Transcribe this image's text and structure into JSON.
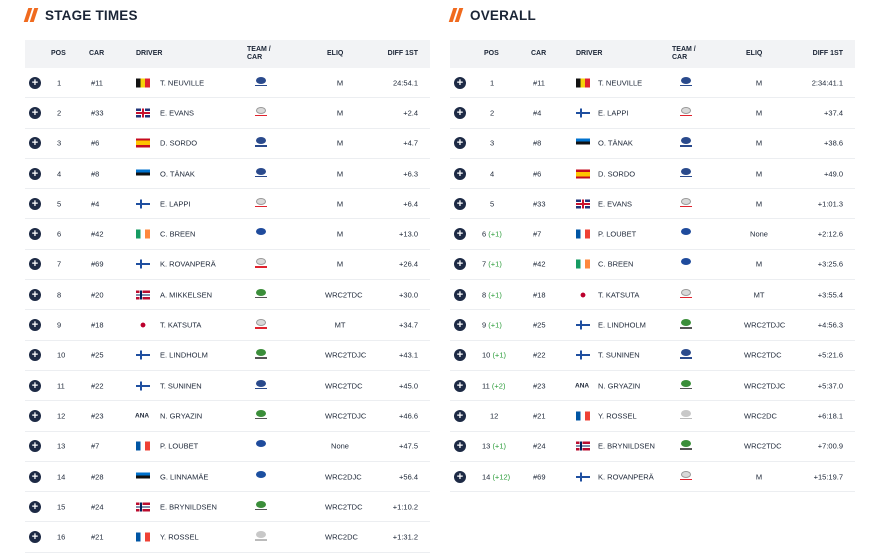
{
  "colors": {
    "accent": "#f06a1e",
    "plus": "#1d2a45",
    "gain": "#2e9e3c"
  },
  "stage": {
    "title": "STAGE TIMES",
    "headers": {
      "pos": "POS",
      "car": "CAR",
      "driver": "DRIVER",
      "team": "TEAM / CAR",
      "eliq": "ELIQ",
      "diff": "DIFF 1ST"
    },
    "rows": [
      {
        "pos": "1",
        "chg": "",
        "car": "#11",
        "flag": "BEL",
        "driver": "T. NEUVILLE",
        "team": "hyundai",
        "eliq": "M",
        "diff": "24:54.1"
      },
      {
        "pos": "2",
        "chg": "",
        "car": "#33",
        "flag": "GBR",
        "driver": "E. EVANS",
        "team": "toyota",
        "eliq": "M",
        "diff": "+2.4"
      },
      {
        "pos": "3",
        "chg": "",
        "car": "#6",
        "flag": "ESP",
        "driver": "D. SORDO",
        "team": "hyundai",
        "eliq": "M",
        "diff": "+4.7"
      },
      {
        "pos": "4",
        "chg": "",
        "car": "#8",
        "flag": "EST",
        "driver": "O. TÄNAK",
        "team": "hyundai",
        "eliq": "M",
        "diff": "+6.3"
      },
      {
        "pos": "5",
        "chg": "",
        "car": "#4",
        "flag": "FIN",
        "driver": "E. LAPPI",
        "team": "toyota",
        "eliq": "M",
        "diff": "+6.4"
      },
      {
        "pos": "6",
        "chg": "",
        "car": "#42",
        "flag": "IRL",
        "driver": "C. BREEN",
        "team": "ford",
        "eliq": "M",
        "diff": "+13.0"
      },
      {
        "pos": "7",
        "chg": "",
        "car": "#69",
        "flag": "FIN",
        "driver": "K. ROVANPERÄ",
        "team": "toyota",
        "eliq": "M",
        "diff": "+26.4"
      },
      {
        "pos": "8",
        "chg": "",
        "car": "#20",
        "flag": "NOR",
        "driver": "A. MIKKELSEN",
        "team": "skoda",
        "eliq": "WRC2TDC",
        "diff": "+30.0"
      },
      {
        "pos": "9",
        "chg": "",
        "car": "#18",
        "flag": "JPN",
        "driver": "T. KATSUTA",
        "team": "toyota",
        "eliq": "MT",
        "diff": "+34.7"
      },
      {
        "pos": "10",
        "chg": "",
        "car": "#25",
        "flag": "FIN",
        "driver": "E. LINDHOLM",
        "team": "skoda",
        "eliq": "WRC2TDJC",
        "diff": "+43.1"
      },
      {
        "pos": "11",
        "chg": "",
        "car": "#22",
        "flag": "FIN",
        "driver": "T. SUNINEN",
        "team": "hyundai",
        "eliq": "WRC2TDC",
        "diff": "+45.0"
      },
      {
        "pos": "12",
        "chg": "",
        "car": "#23",
        "flag": "ANA",
        "flag_text": "ANA",
        "driver": "N. GRYAZIN",
        "team": "skoda",
        "eliq": "WRC2TDJC",
        "diff": "+46.6"
      },
      {
        "pos": "13",
        "chg": "",
        "car": "#7",
        "flag": "FRA",
        "driver": "P. LOUBET",
        "team": "ford",
        "eliq": "None",
        "diff": "+47.5"
      },
      {
        "pos": "14",
        "chg": "",
        "car": "#28",
        "flag": "EST",
        "driver": "G. LINNAMÄE",
        "team": "vw",
        "eliq": "WRC2DJC",
        "diff": "+56.4"
      },
      {
        "pos": "15",
        "chg": "",
        "car": "#24",
        "flag": "NOR",
        "driver": "E. BRYNILDSEN",
        "team": "skoda",
        "eliq": "WRC2TDC",
        "diff": "+1:10.2"
      },
      {
        "pos": "16",
        "chg": "",
        "car": "#21",
        "flag": "FRA",
        "driver": "Y. ROSSEL",
        "team": "citroen",
        "eliq": "WRC2DC",
        "diff": "+1:31.2"
      }
    ]
  },
  "overall": {
    "title": "OVERALL",
    "headers": {
      "pos": "POS",
      "car": "CAR",
      "driver": "DRIVER",
      "team": "TEAM / CAR",
      "eliq": "ELIQ",
      "diff": "DIFF 1ST"
    },
    "rows": [
      {
        "pos": "1",
        "chg": "",
        "car": "#11",
        "flag": "BEL",
        "driver": "T. NEUVILLE",
        "team": "hyundai",
        "eliq": "M",
        "diff": "2:34:41.1"
      },
      {
        "pos": "2",
        "chg": "",
        "car": "#4",
        "flag": "FIN",
        "driver": "E. LAPPI",
        "team": "toyota",
        "eliq": "M",
        "diff": "+37.4"
      },
      {
        "pos": "3",
        "chg": "",
        "car": "#8",
        "flag": "EST",
        "driver": "O. TÄNAK",
        "team": "hyundai",
        "eliq": "M",
        "diff": "+38.6"
      },
      {
        "pos": "4",
        "chg": "",
        "car": "#6",
        "flag": "ESP",
        "driver": "D. SORDO",
        "team": "hyundai",
        "eliq": "M",
        "diff": "+49.0"
      },
      {
        "pos": "5",
        "chg": "",
        "car": "#33",
        "flag": "GBR",
        "driver": "E. EVANS",
        "team": "toyota",
        "eliq": "M",
        "diff": "+1:01.3"
      },
      {
        "pos": "6",
        "chg": "(+1)",
        "car": "#7",
        "flag": "FRA",
        "driver": "P. LOUBET",
        "team": "ford",
        "eliq": "None",
        "diff": "+2:12.6"
      },
      {
        "pos": "7",
        "chg": "(+1)",
        "car": "#42",
        "flag": "IRL",
        "driver": "C. BREEN",
        "team": "ford",
        "eliq": "M",
        "diff": "+3:25.6"
      },
      {
        "pos": "8",
        "chg": "(+1)",
        "car": "#18",
        "flag": "JPN",
        "driver": "T. KATSUTA",
        "team": "toyota",
        "eliq": "MT",
        "diff": "+3:55.4"
      },
      {
        "pos": "9",
        "chg": "(+1)",
        "car": "#25",
        "flag": "FIN",
        "driver": "E. LINDHOLM",
        "team": "skoda",
        "eliq": "WRC2TDJC",
        "diff": "+4:56.3"
      },
      {
        "pos": "10",
        "chg": "(+1)",
        "car": "#22",
        "flag": "FIN",
        "driver": "T. SUNINEN",
        "team": "hyundai",
        "eliq": "WRC2TDC",
        "diff": "+5:21.6"
      },
      {
        "pos": "11",
        "chg": "(+2)",
        "car": "#23",
        "flag": "ANA",
        "flag_text": "ANA",
        "driver": "N. GRYAZIN",
        "team": "skoda",
        "eliq": "WRC2TDJC",
        "diff": "+5:37.0"
      },
      {
        "pos": "12",
        "chg": "",
        "car": "#21",
        "flag": "FRA",
        "driver": "Y. ROSSEL",
        "team": "citroen",
        "eliq": "WRC2DC",
        "diff": "+6:18.1"
      },
      {
        "pos": "13",
        "chg": "(+1)",
        "car": "#24",
        "flag": "NOR",
        "driver": "E. BRYNILDSEN",
        "team": "skoda",
        "eliq": "WRC2TDC",
        "diff": "+7:00.9"
      },
      {
        "pos": "14",
        "chg": "(+12)",
        "car": "#69",
        "flag": "FIN",
        "driver": "K. ROVANPERÄ",
        "team": "toyota",
        "eliq": "M",
        "diff": "+15:19.7"
      }
    ]
  }
}
